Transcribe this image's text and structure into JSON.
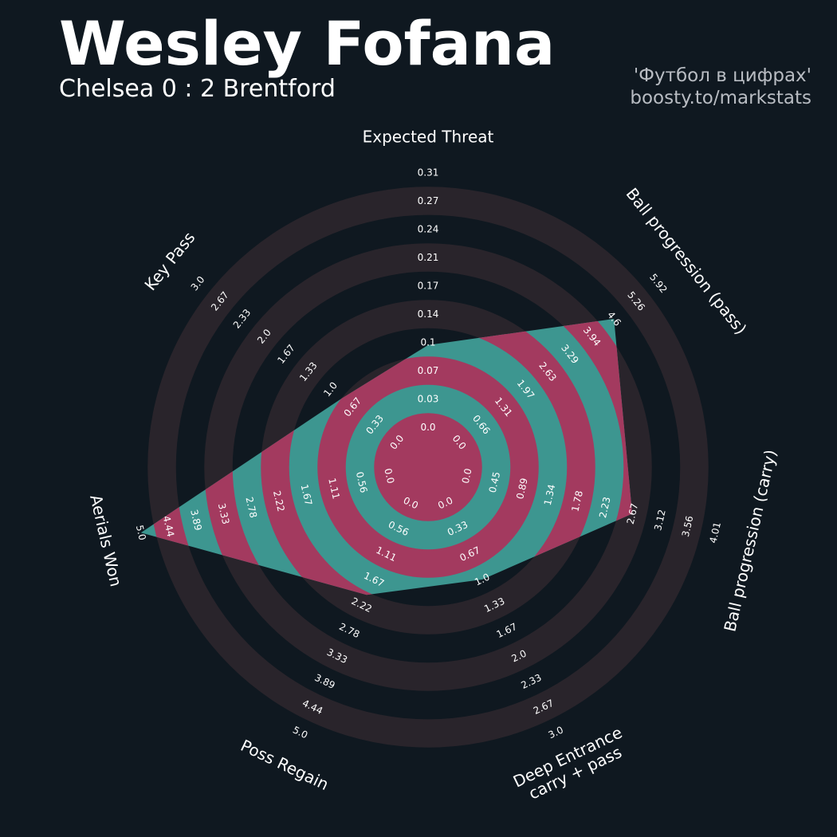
{
  "header": {
    "title": "Wesley Fofana",
    "subtitle": "Chelsea 0 : 2 Brentford",
    "credit_line1": "'Футбол в цифрах'",
    "credit_line2": "boosty.to/markstats"
  },
  "colors": {
    "background": "#0f1820",
    "ring_band": "#29242b",
    "shape_fill": "#3d9690",
    "shape_overlay": "#a33a5f",
    "text": "#ffffff",
    "credit_text": "#b8bcc2"
  },
  "chart_data": {
    "type": "radar",
    "title": "Wesley Fofana",
    "subtitle": "Chelsea 0 : 2 Brentford",
    "params": [
      "Expected Threat",
      "Ball progression (pass)",
      "Ball progression (carry)",
      "Deep Entrance\ncarry + pass",
      "Poss Regain",
      "Aerials Won",
      "Key Pass"
    ],
    "ticks": [
      [
        "0.0",
        "0.03",
        "0.07",
        "0.1",
        "0.14",
        "0.17",
        "0.21",
        "0.24",
        "0.27",
        "0.31"
      ],
      [
        "0.0",
        "0.66",
        "1.31",
        "1.97",
        "2.63",
        "3.29",
        "3.94",
        "4.6",
        "5.26",
        "5.92"
      ],
      [
        "0.0",
        "0.45",
        "0.89",
        "1.34",
        "1.78",
        "2.23",
        "2.67",
        "3.12",
        "3.56",
        "4.01"
      ],
      [
        "0.0",
        "0.33",
        "0.67",
        "1.0",
        "1.33",
        "1.67",
        "2.0",
        "2.33",
        "2.67",
        "3.0"
      ],
      [
        "0.0",
        "0.56",
        "1.11",
        "1.67",
        "2.22",
        "2.78",
        "3.33",
        "3.89",
        "4.44",
        "5.0"
      ],
      [
        "0.0",
        "0.56",
        "1.11",
        "1.67",
        "2.22",
        "2.78",
        "3.33",
        "3.89",
        "4.44",
        "5.0"
      ],
      [
        "0.0",
        "0.33",
        "0.67",
        "1.0",
        "1.33",
        "1.67",
        "2.0",
        "2.33",
        "2.67",
        "3.0"
      ]
    ],
    "ranges": [
      [
        0,
        0.31
      ],
      [
        0,
        5.92
      ],
      [
        0,
        4.01
      ],
      [
        0,
        3.0
      ],
      [
        0,
        5.0
      ],
      [
        0,
        5.0
      ],
      [
        0,
        3.0
      ]
    ],
    "values": [
      0.1,
      4.6,
      2.67,
      1.0,
      2.0,
      5.0,
      0.83
    ]
  }
}
